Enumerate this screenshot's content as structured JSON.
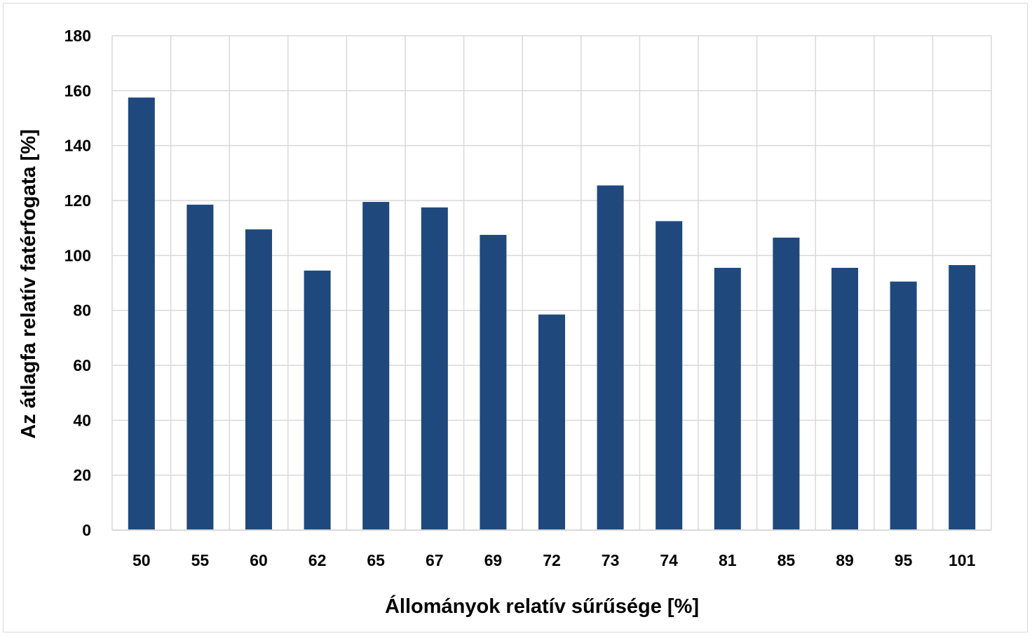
{
  "chart_data": {
    "type": "bar",
    "title": "",
    "xlabel": "Állományok relatív sűrűsége [%]",
    "ylabel": "Az átlagfa relatív fatérfogata [%]",
    "categories": [
      "50",
      "55",
      "60",
      "62",
      "65",
      "67",
      "69",
      "72",
      "73",
      "74",
      "81",
      "85",
      "89",
      "95",
      "101"
    ],
    "values": [
      157.5,
      118.5,
      109.5,
      94.5,
      119.5,
      117.5,
      107.5,
      78.5,
      125.5,
      112.5,
      95.5,
      106.5,
      95.5,
      90.5,
      96.5
    ],
    "ylim": [
      0,
      180
    ],
    "yticks": [
      "0",
      "20",
      "40",
      "60",
      "80",
      "100",
      "120",
      "140",
      "160",
      "180"
    ],
    "grid": true,
    "legend": "none",
    "colors": {
      "bar": "#1f497d",
      "grid": "#d9d9d9",
      "frame": "#d9d9d9"
    }
  }
}
